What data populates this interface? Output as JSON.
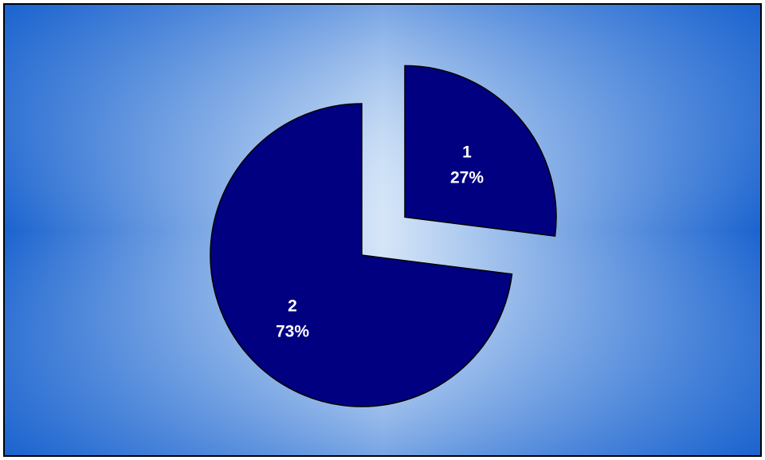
{
  "chart_data": {
    "type": "pie",
    "categories": [
      "1",
      "2"
    ],
    "values": [
      27,
      73
    ],
    "data_labels": [
      {
        "category": "1",
        "percent": "27%"
      },
      {
        "category": "2",
        "percent": "73%"
      }
    ],
    "exploded": true,
    "legend": "none",
    "colors": {
      "slice_fill": "#000080",
      "slice_stroke": "#000000",
      "label_text": "#ffffff",
      "background_edge": "#1a63cf",
      "background_center": "#d6e6f8",
      "border": "#000000"
    }
  }
}
